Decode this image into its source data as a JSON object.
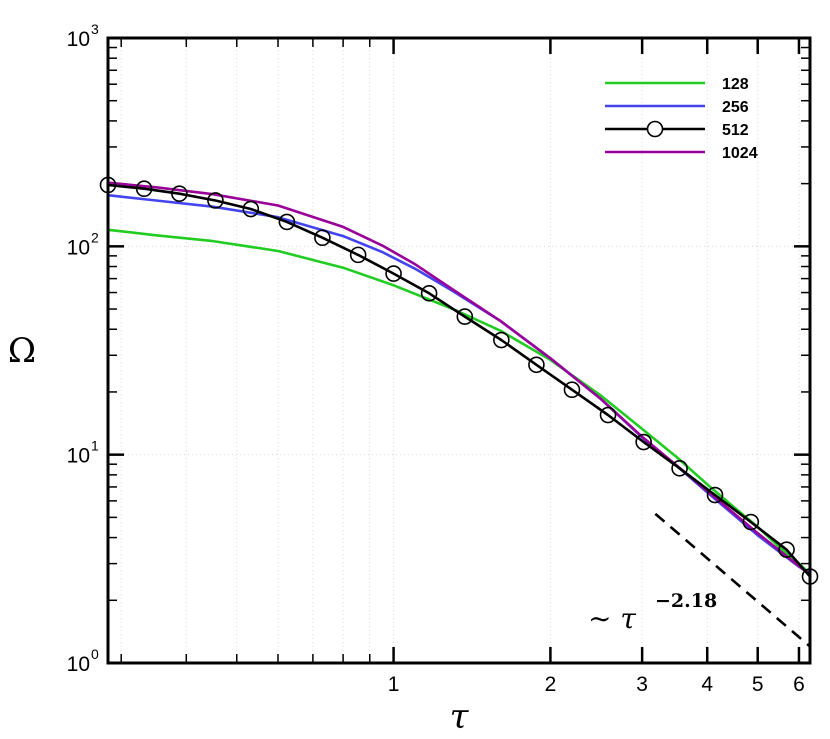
{
  "chart_data": {
    "type": "line",
    "xlabel": "τ",
    "ylabel": "Ω",
    "xscale": "log",
    "yscale": "log",
    "xlim": [
      0.283,
      6.3
    ],
    "ylim": [
      1,
      1000
    ],
    "grid": true,
    "legend_position": "top-right",
    "x_ticks": [
      {
        "value": 1,
        "label": "1"
      },
      {
        "value": 2,
        "label": "2"
      },
      {
        "value": 3,
        "label": "3"
      },
      {
        "value": 4,
        "label": "4"
      },
      {
        "value": 5,
        "label": "5"
      },
      {
        "value": 6,
        "label": "6"
      }
    ],
    "y_ticks": [
      {
        "value": 1,
        "base": "10",
        "exp": "0"
      },
      {
        "value": 10,
        "base": "10",
        "exp": "1"
      },
      {
        "value": 100,
        "base": "10",
        "exp": "2"
      },
      {
        "value": 1000,
        "base": "10",
        "exp": "3"
      }
    ],
    "series": [
      {
        "name": "128",
        "color": "#22cc22",
        "marker": "none",
        "x": [
          0.283,
          0.35,
          0.45,
          0.6,
          0.8,
          1.0,
          1.3,
          1.6,
          2.0,
          2.5,
          3.0,
          3.5,
          4.0,
          4.5,
          5.0,
          5.5,
          6.0,
          6.3
        ],
        "y": [
          120,
          113,
          106,
          95,
          79,
          65,
          50,
          39.5,
          28.5,
          19.2,
          13.3,
          9.7,
          7.2,
          5.6,
          4.5,
          3.6,
          3.0,
          2.68
        ]
      },
      {
        "name": "256",
        "color": "#4444ee",
        "marker": "none",
        "x": [
          0.283,
          0.35,
          0.45,
          0.6,
          0.8,
          0.95,
          1.1,
          1.3,
          1.6,
          2.0,
          2.5,
          3.0,
          3.5,
          4.0,
          5.0,
          6.0,
          6.3
        ],
        "y": [
          176,
          166,
          155,
          138,
          112,
          94,
          78,
          61,
          44,
          29,
          18.5,
          12.1,
          8.8,
          6.6,
          4.1,
          2.9,
          2.7
        ]
      },
      {
        "name": "512",
        "color": "#000000",
        "marker": "circle",
        "x": [
          0.283,
          0.332,
          0.388,
          0.455,
          0.532,
          0.624,
          0.73,
          0.855,
          1.0,
          1.17,
          1.37,
          1.61,
          1.88,
          2.2,
          2.58,
          3.02,
          3.54,
          4.14,
          4.85,
          5.68,
          6.3
        ],
        "y": [
          197,
          189,
          179,
          166,
          151,
          131,
          110,
          91,
          74,
          59.5,
          46,
          35.5,
          27,
          20.5,
          15.5,
          11.5,
          8.6,
          6.4,
          4.75,
          3.5,
          2.6
        ]
      },
      {
        "name": "1024",
        "color": "#990099",
        "marker": "none",
        "x": [
          0.283,
          0.35,
          0.45,
          0.6,
          0.8,
          0.95,
          1.1,
          1.3,
          1.6,
          2.0,
          2.5,
          3.0,
          4.0,
          5.0,
          6.3
        ],
        "y": [
          202,
          192,
          178,
          157,
          124,
          101,
          82,
          62,
          44,
          29,
          18.5,
          12.2,
          6.7,
          4.2,
          2.65
        ]
      }
    ],
    "reference_line": {
      "label_prefix": "∼ τ",
      "exponent": "−2.18",
      "x": [
        3.18,
        6.3
      ],
      "y": [
        5.2,
        1.2
      ]
    }
  }
}
